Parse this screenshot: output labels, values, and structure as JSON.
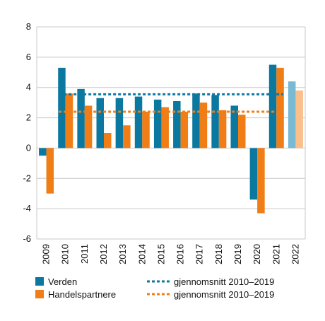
{
  "chart_data": {
    "type": "bar",
    "categories": [
      "2009",
      "2010",
      "2011",
      "2012",
      "2013",
      "2014",
      "2015",
      "2016",
      "2017",
      "2018",
      "2019",
      "2020",
      "2021",
      "2022"
    ],
    "series": [
      {
        "name": "Verden",
        "color": "#0b78a0",
        "values": [
          -0.5,
          5.3,
          3.9,
          3.3,
          3.3,
          3.4,
          3.2,
          3.1,
          3.6,
          3.5,
          2.8,
          -3.4,
          5.5,
          4.4
        ],
        "projection_color": "#79b9d4"
      },
      {
        "name": "Handelspartnere",
        "color": "#f07d16",
        "values": [
          -3.0,
          3.6,
          2.8,
          1.0,
          1.5,
          2.4,
          2.7,
          2.4,
          3.0,
          2.5,
          2.2,
          -4.3,
          5.3,
          3.8
        ],
        "projection_color": "#f9c08c"
      }
    ],
    "projection_categories": [
      "2022"
    ],
    "averages": [
      {
        "name": "gjennomsnitt 2010–2019",
        "value": 3.55,
        "color": "#0b78a0"
      },
      {
        "name": "gjennomsnitt 2010–2019",
        "value": 2.4,
        "color": "#f07d16"
      }
    ],
    "ylim": [
      -6,
      8
    ],
    "yticks": [
      -6,
      -4,
      -2,
      0,
      2,
      4,
      6,
      8
    ],
    "grid": true,
    "legend_position": "bottom"
  }
}
